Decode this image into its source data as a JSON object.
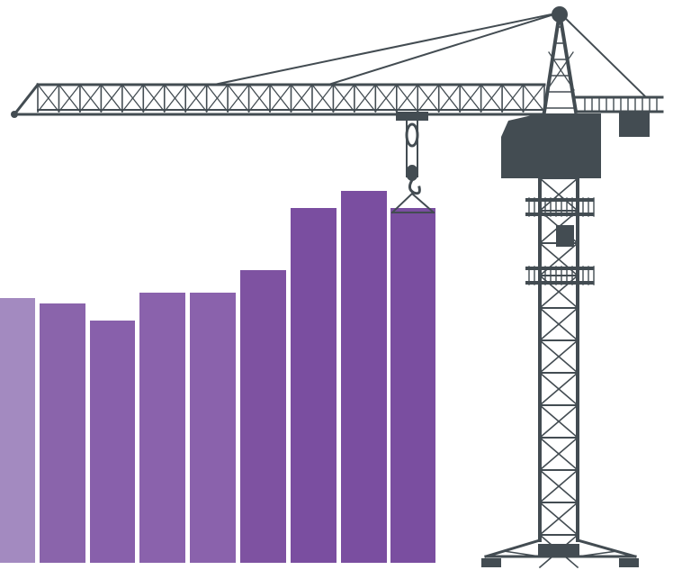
{
  "illustration": {
    "subject": "tower-crane-lifting-bar",
    "crane_color": "#434c52",
    "bar_colors": [
      "#a38ac0",
      "#8a64ab",
      "#8860ab",
      "#8a62ac",
      "#8a62ac",
      "#7e52a1",
      "#7a4ea0",
      "#7a4ea0",
      "#7a4ea0"
    ],
    "bar_levels": [
      0.47,
      0.46,
      0.43,
      0.48,
      0.48,
      0.52,
      0.63,
      0.66,
      0.63
    ]
  }
}
